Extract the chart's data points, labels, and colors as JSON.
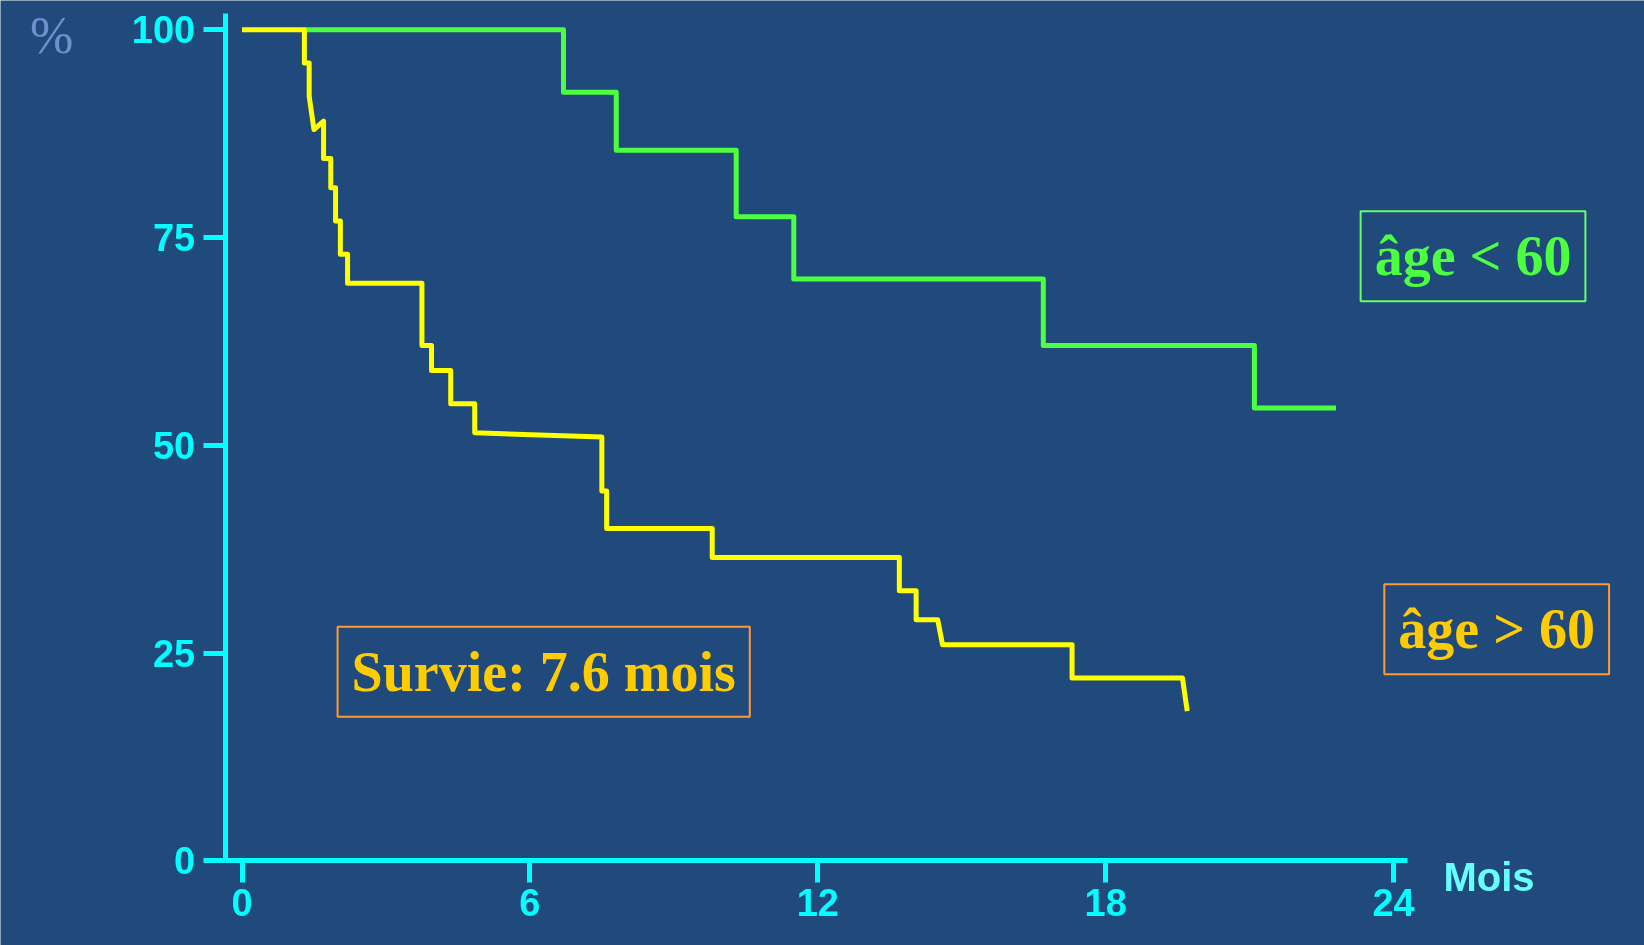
{
  "chart_data": {
    "type": "line",
    "xlabel": "Mois",
    "ylabel": "%",
    "xlim": [
      -0.35,
      24.3
    ],
    "ylim": [
      0,
      102
    ],
    "xticks": [
      0,
      6,
      12,
      18,
      24
    ],
    "yticks": [
      0,
      25,
      50,
      75,
      100
    ],
    "grid": false,
    "annotations": [
      "Survie: 7.6 mois"
    ],
    "series": [
      {
        "name": "âge < 60",
        "color": "#4cff40",
        "x": [
          1.3,
          6.7,
          6.7,
          7.8,
          7.8,
          10.3,
          10.3,
          11.5,
          11.5,
          16.7,
          16.7,
          21.1,
          21.1,
          22.8
        ],
        "values": [
          100,
          100,
          92.5,
          92.5,
          85.5,
          85.5,
          77.5,
          77.5,
          70,
          70,
          62,
          62,
          54.5,
          54.5
        ]
      },
      {
        "name": "âge > 60",
        "color": "#ffff00",
        "x": [
          0,
          1.3,
          1.3,
          1.4,
          1.4,
          1.5,
          1.7,
          1.7,
          1.85,
          1.85,
          1.95,
          1.95,
          2.05,
          2.05,
          2.2,
          2.2,
          3.75,
          3.75,
          3.95,
          3.95,
          4.35,
          4.35,
          4.85,
          4.85,
          7.5,
          7.5,
          7.6,
          7.6,
          9.8,
          9.8,
          13.7,
          13.7,
          14.05,
          14.05,
          14.5,
          14.6,
          17.3,
          17.3,
          19.6,
          19.7
        ],
        "values": [
          100,
          100,
          96,
          96,
          92,
          88,
          89,
          84.5,
          84.5,
          81,
          81,
          77,
          77,
          73,
          73,
          69.5,
          69.5,
          62,
          62,
          59,
          59,
          55,
          55,
          51.5,
          51,
          44.5,
          44.5,
          40,
          40,
          36.5,
          36.5,
          32.5,
          32.5,
          29,
          29,
          26,
          26,
          22,
          22,
          18
        ]
      }
    ]
  }
}
